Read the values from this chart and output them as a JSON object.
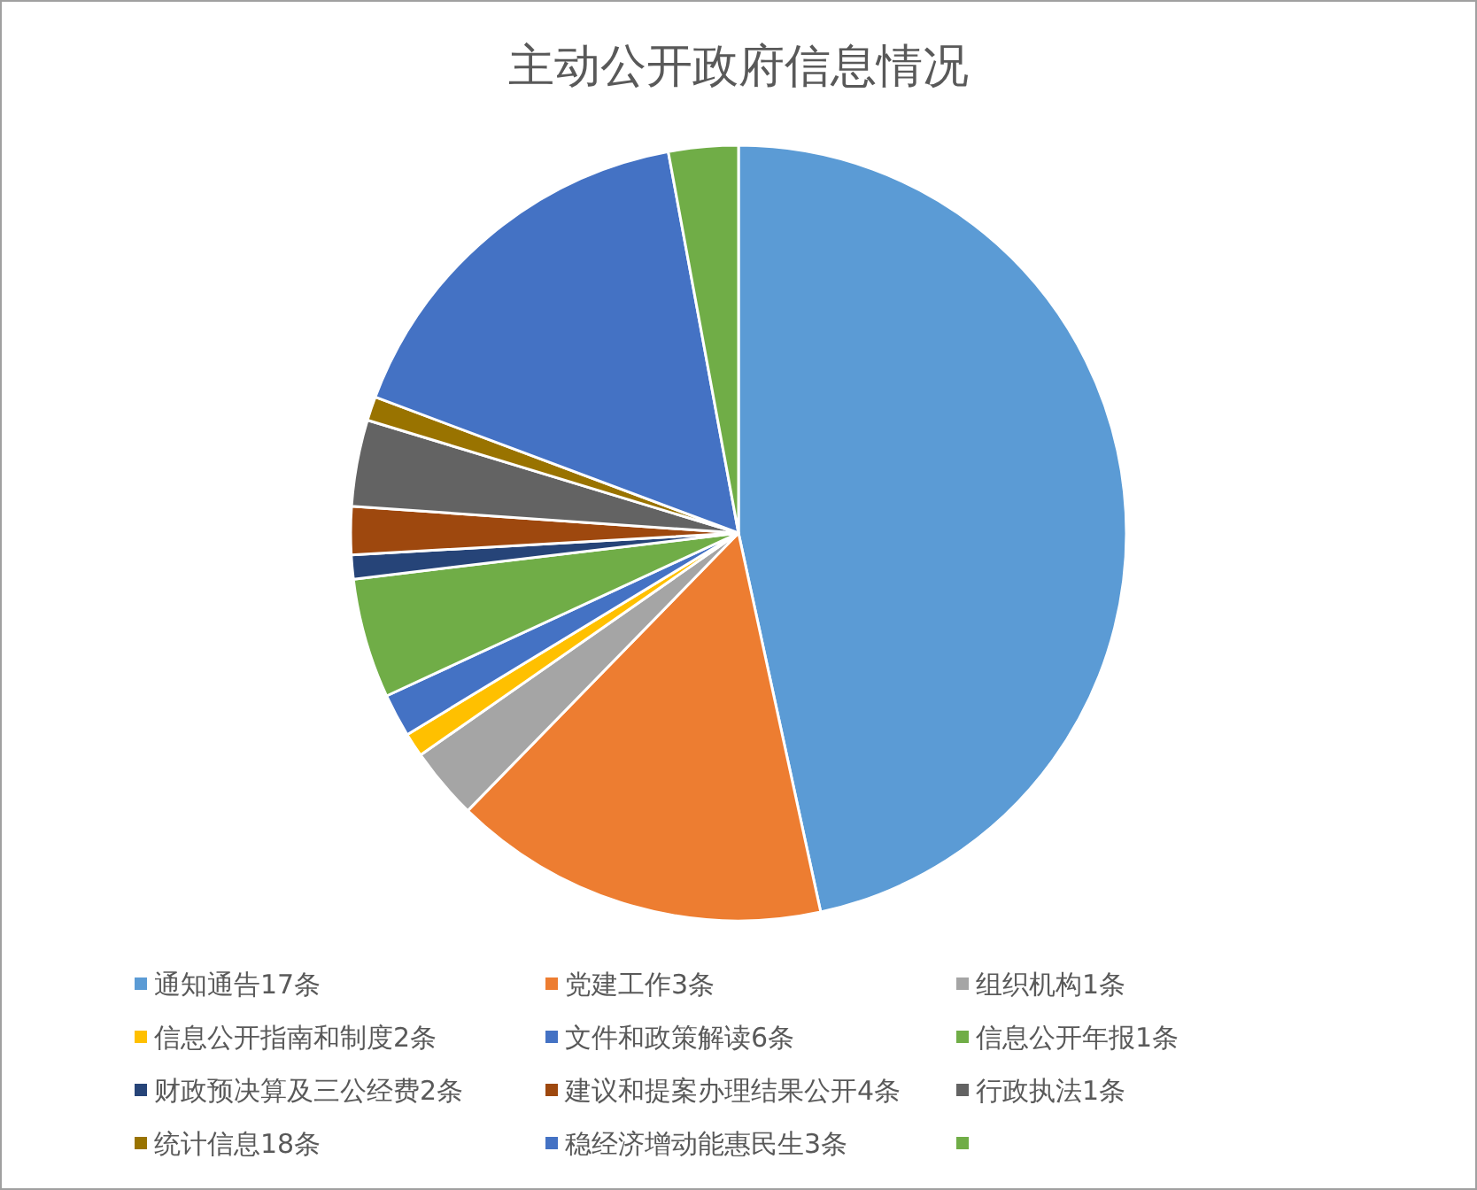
{
  "chart_data": {
    "type": "pie",
    "title": "主动公开政府信息情况",
    "categories": [
      "通知通告17条",
      "党建工作3条",
      "组织机构1条",
      "信息公开指南和制度2条",
      "文件和政策解读6条",
      "信息公开年报1条",
      "财政预决算及三公经费2条",
      "建议和提案办理结果公开4条",
      "行政执法1条",
      "统计信息18条",
      "稳经济增动能惠民生3条",
      null
    ],
    "values": [
      46.6,
      15.7,
      3.0,
      1.0,
      1.8,
      5.0,
      1.0,
      2.0,
      3.6,
      1.0,
      16.4,
      2.9
    ],
    "colors": [
      "#5b9bd5",
      "#ed7d31",
      "#a5a5a5",
      "#ffc000",
      "#4472c4",
      "#70ad47",
      "#264478",
      "#9e480e",
      "#636363",
      "#997300",
      "#4472c4",
      "#70ad47"
    ],
    "legend": "bottom"
  }
}
